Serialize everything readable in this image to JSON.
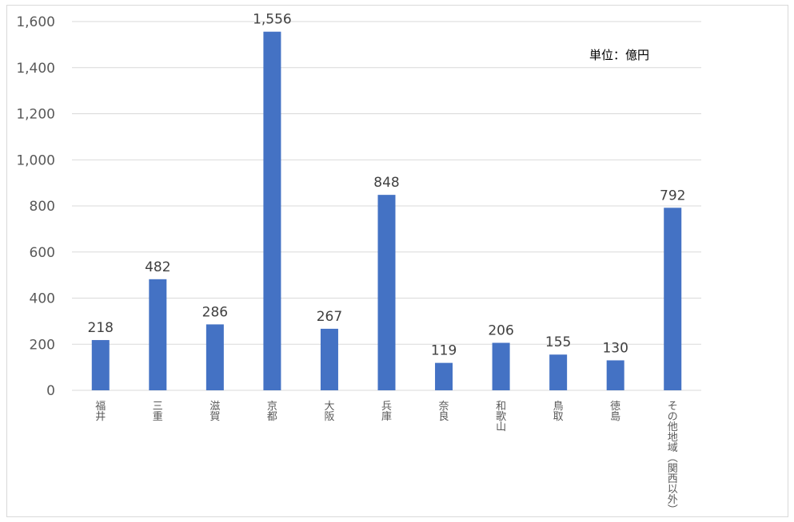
{
  "chart_data": {
    "type": "bar",
    "categories": [
      "福井",
      "三重",
      "滋賀",
      "京都",
      "大阪",
      "兵庫",
      "奈良",
      "和歌山",
      "鳥取",
      "徳島",
      "その他地域（関西以外）"
    ],
    "category_labels_vertical": [
      "福井",
      "三重",
      "滋賀",
      "京都",
      "大阪",
      "兵庫",
      "奈良",
      "和歌山",
      "鳥取",
      "徳島",
      "その他地域︵関西以外︶"
    ],
    "values": [
      218,
      482,
      286,
      1556,
      267,
      848,
      119,
      206,
      155,
      130,
      792
    ],
    "data_labels": [
      "218",
      "482",
      "286",
      "1,556",
      "267",
      "848",
      "119",
      "206",
      "155",
      "130",
      "792"
    ],
    "y_ticks": [
      0,
      200,
      400,
      600,
      800,
      1000,
      1200,
      1400,
      1600
    ],
    "y_tick_labels": [
      "0",
      "200",
      "400",
      "600",
      "800",
      "1,000",
      "1,200",
      "1,400",
      "1,600"
    ],
    "ylim": [
      0,
      1600
    ],
    "annotation": "単位：億円",
    "grid": true,
    "legend": "none",
    "bar_color": "#4472c4",
    "grid_color": "#d9d9d9"
  }
}
